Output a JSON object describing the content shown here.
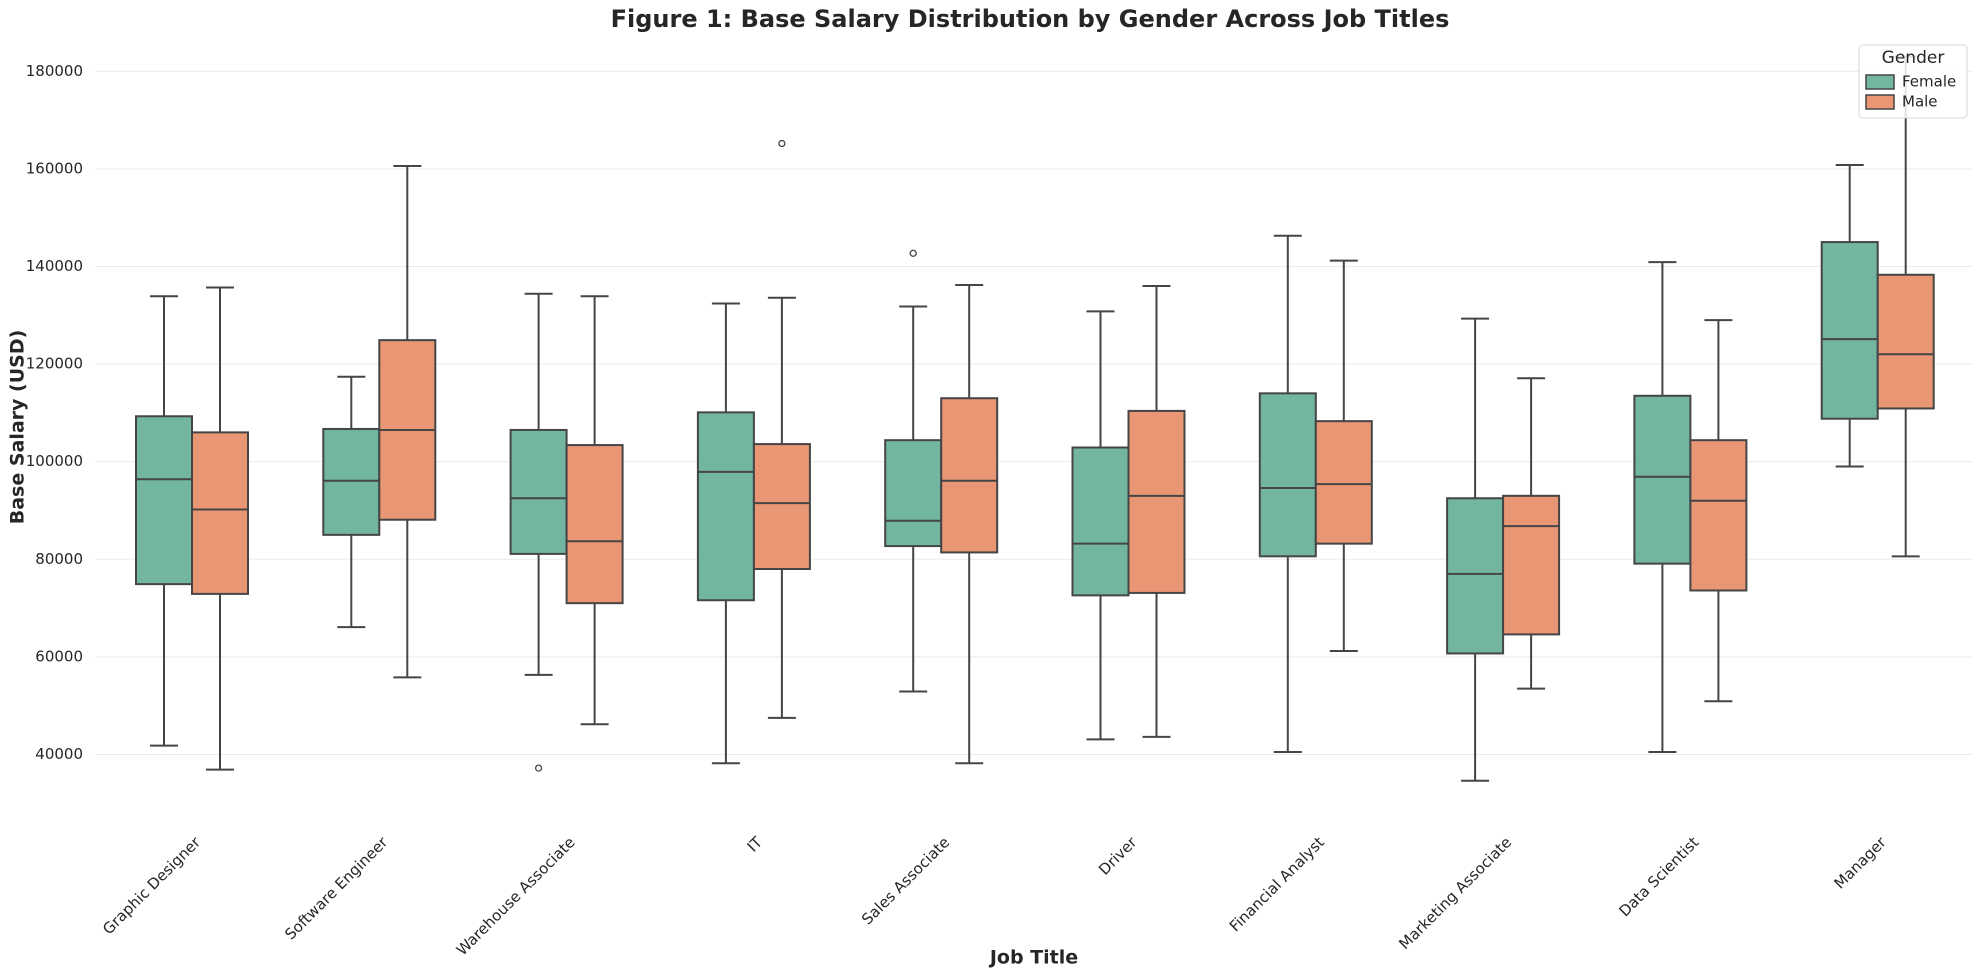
{
  "chart_data": {
    "type": "box",
    "title": "Figure 1: Base Salary Distribution by Gender Across Job Titles",
    "x_label": "Job Title",
    "y_label": "Base Salary (USD)",
    "legend_title": "Gender",
    "legend_position": "upper right",
    "categories": [
      "Graphic Designer",
      "Software Engineer",
      "Warehouse Associate",
      "IT",
      "Sales Associate",
      "Driver",
      "Financial Analyst",
      "Marketing Associate",
      "Data Scientist",
      "Manager"
    ],
    "ylim": [
      28000,
      186000
    ],
    "yticks": [
      40000,
      60000,
      80000,
      100000,
      120000,
      140000,
      160000,
      180000
    ],
    "grid": true,
    "series": [
      {
        "name": "Female",
        "color": "#72b6a1",
        "boxes": [
          {
            "min": 41800,
            "q1": 74900,
            "median": 96400,
            "q3": 109300,
            "max": 133900
          },
          {
            "min": 66100,
            "q1": 85000,
            "median": 96100,
            "q3": 106700,
            "max": 117400
          },
          {
            "min": 56300,
            "q1": 81100,
            "median": 92500,
            "q3": 106500,
            "max": 134400,
            "outliers": [
              37200
            ]
          },
          {
            "min": 38200,
            "q1": 71600,
            "median": 97900,
            "q3": 110100,
            "max": 132400
          },
          {
            "min": 52900,
            "q1": 82700,
            "median": 87900,
            "q3": 104400,
            "max": 131800,
            "outliers": [
              142700
            ]
          },
          {
            "min": 43100,
            "q1": 72600,
            "median": 83200,
            "q3": 102900,
            "max": 130800
          },
          {
            "min": 40500,
            "q1": 80600,
            "median": 94600,
            "q3": 114000,
            "max": 146300
          },
          {
            "min": 34600,
            "q1": 60700,
            "median": 77000,
            "q3": 92500,
            "max": 129300
          },
          {
            "min": 40500,
            "q1": 79100,
            "median": 96900,
            "q3": 113500,
            "max": 140900
          },
          {
            "min": 99000,
            "q1": 108800,
            "median": 125100,
            "q3": 145000,
            "max": 160800
          }
        ]
      },
      {
        "name": "Male",
        "color": "#e99675",
        "boxes": [
          {
            "min": 36900,
            "q1": 72900,
            "median": 90200,
            "q3": 106000,
            "max": 135700
          },
          {
            "min": 55800,
            "q1": 88100,
            "median": 106500,
            "q3": 124900,
            "max": 160600
          },
          {
            "min": 46200,
            "q1": 71000,
            "median": 83700,
            "q3": 103400,
            "max": 133900
          },
          {
            "min": 47500,
            "q1": 78000,
            "median": 91500,
            "q3": 103600,
            "max": 133600,
            "outliers": [
              165200
            ]
          },
          {
            "min": 38200,
            "q1": 81400,
            "median": 96100,
            "q3": 113000,
            "max": 136200
          },
          {
            "min": 43600,
            "q1": 73100,
            "median": 93000,
            "q3": 110400,
            "max": 136000
          },
          {
            "min": 61200,
            "q1": 83200,
            "median": 95400,
            "q3": 108300,
            "max": 141200
          },
          {
            "min": 53500,
            "q1": 64600,
            "median": 86800,
            "q3": 93000,
            "max": 117100
          },
          {
            "min": 50900,
            "q1": 73600,
            "median": 92000,
            "q3": 104400,
            "max": 129000
          },
          {
            "min": 80600,
            "q1": 110900,
            "median": 122000,
            "q3": 138300,
            "max": 183000
          }
        ]
      }
    ]
  }
}
